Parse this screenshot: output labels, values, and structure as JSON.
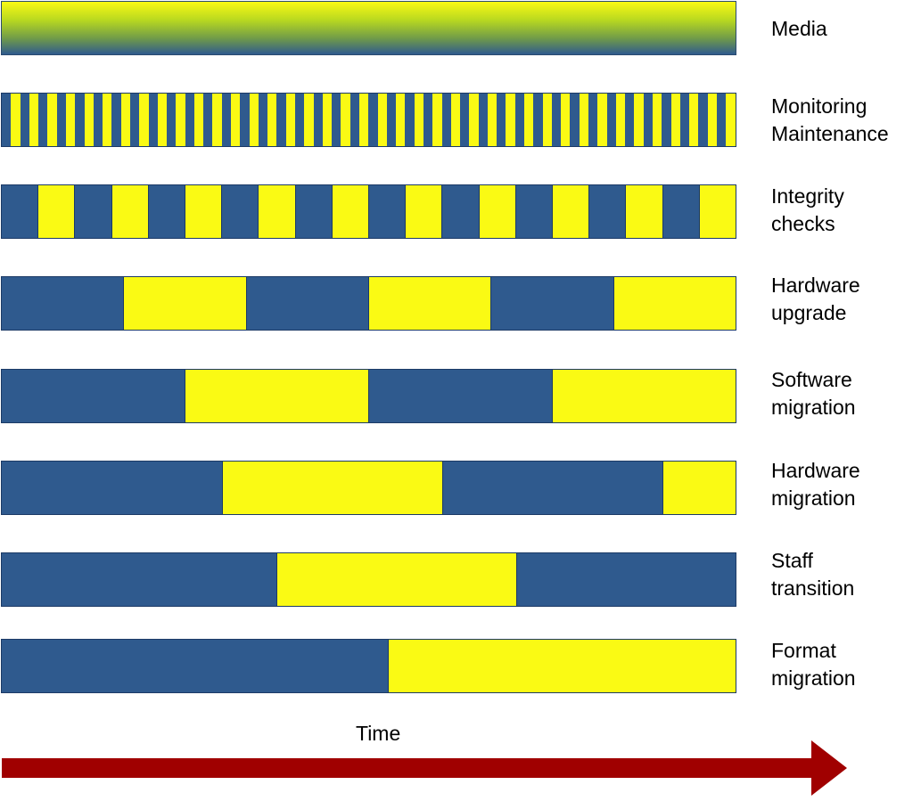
{
  "rows": [
    {
      "id": "media",
      "label_lines": [
        "Media"
      ],
      "style": "gradient",
      "colors": {
        "top": "#fafa14",
        "bottom": "#2f5a8e"
      }
    },
    {
      "id": "monitoring-maintenance",
      "label_lines": [
        "Monitoring",
        "Maintenance"
      ],
      "style": "stripes",
      "stripe_count": 80
    },
    {
      "id": "integrity-checks",
      "label_lines": [
        "Integrity",
        "checks"
      ],
      "style": "alternating",
      "segments": [
        "blue",
        "yellow",
        "blue",
        "yellow",
        "blue",
        "yellow",
        "blue",
        "yellow",
        "blue",
        "yellow",
        "blue",
        "yellow",
        "blue",
        "yellow",
        "blue",
        "yellow",
        "blue",
        "yellow",
        "blue",
        "yellow"
      ]
    },
    {
      "id": "hardware-upgrade",
      "label_lines": [
        "Hardware",
        "upgrade"
      ],
      "style": "alternating",
      "segments": [
        "blue",
        "yellow",
        "blue",
        "yellow",
        "blue",
        "yellow"
      ]
    },
    {
      "id": "software-migration",
      "label_lines": [
        "Software",
        "migration"
      ],
      "style": "alternating",
      "segments": [
        "blue",
        "yellow",
        "blue",
        "yellow"
      ]
    },
    {
      "id": "hardware-migration",
      "label_lines": [
        "Hardware",
        "migration"
      ],
      "style": "alternating",
      "segments": [
        "blue",
        "yellow",
        "blue",
        "yellow"
      ]
    },
    {
      "id": "staff-transition",
      "label_lines": [
        "Staff",
        "transition"
      ],
      "style": "alternating",
      "segments": [
        "blue",
        "yellow",
        "blue"
      ]
    },
    {
      "id": "format-migration",
      "label_lines": [
        "Format",
        "migration"
      ],
      "style": "alternating",
      "segments": [
        "blue",
        "yellow"
      ]
    }
  ],
  "axis": {
    "label": "Time",
    "arrow_color": "#a00000"
  },
  "colors": {
    "blue": "#2f5a8e",
    "yellow": "#fafa14"
  }
}
